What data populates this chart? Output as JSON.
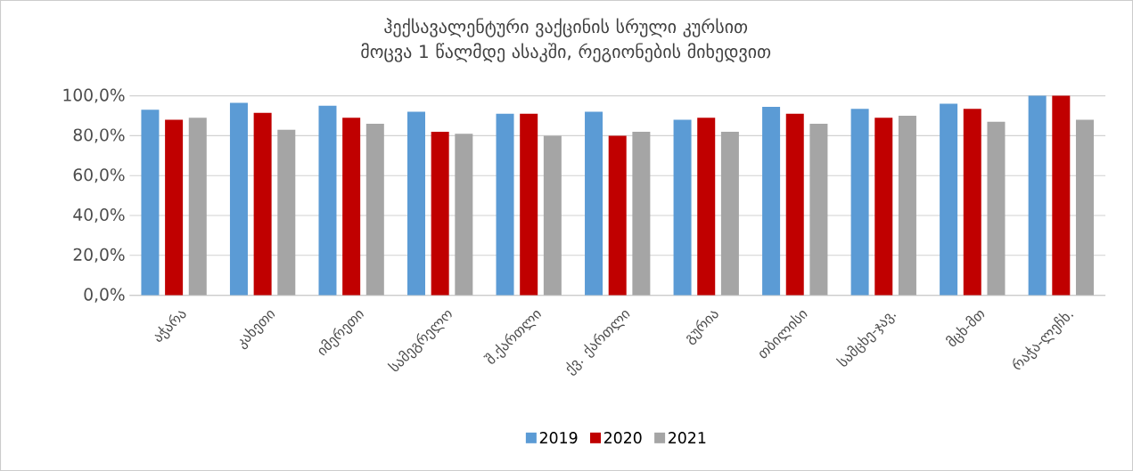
{
  "chart_data": {
    "type": "bar",
    "title": "ჰექსავალენტური ვაქცინის სრული კურსით მოცვა 1 წალმდე ასაკში, რეგიონების მიხედვით",
    "categories": [
      "აჭარა",
      "კახეთი",
      "იმერეთი",
      "სამეგრელო",
      "შ.ქართლი",
      "ქვ. ქართლი",
      "გურია",
      "თბილისი",
      "სამცხე-ჯავ.",
      "მცხ-მთ",
      "რაჭა-ლეჩხ."
    ],
    "series": [
      {
        "name": "2019",
        "color": "#5b9bd5",
        "values": [
          93,
          96.5,
          95,
          92,
          91,
          92,
          88,
          94.5,
          93.5,
          96,
          100
        ]
      },
      {
        "name": "2020",
        "color": "#c00000",
        "values": [
          88,
          91.5,
          89,
          82,
          91,
          80,
          89,
          91,
          89,
          93.5,
          100
        ]
      },
      {
        "name": "2021",
        "color": "#a5a5a5",
        "values": [
          89,
          83,
          86,
          81,
          80,
          82,
          82,
          86,
          90,
          87,
          88
        ]
      }
    ],
    "ylim": [
      0,
      100
    ],
    "yticks": [
      {
        "value": 0,
        "label": "0,0%"
      },
      {
        "value": 20,
        "label": "20,0%"
      },
      {
        "value": 40,
        "label": "40,0%"
      },
      {
        "value": 60,
        "label": "60,0%"
      },
      {
        "value": 80,
        "label": "80,0%"
      },
      {
        "value": 100,
        "label": "100,0%"
      }
    ],
    "grid": "y",
    "legend": "bottom"
  }
}
